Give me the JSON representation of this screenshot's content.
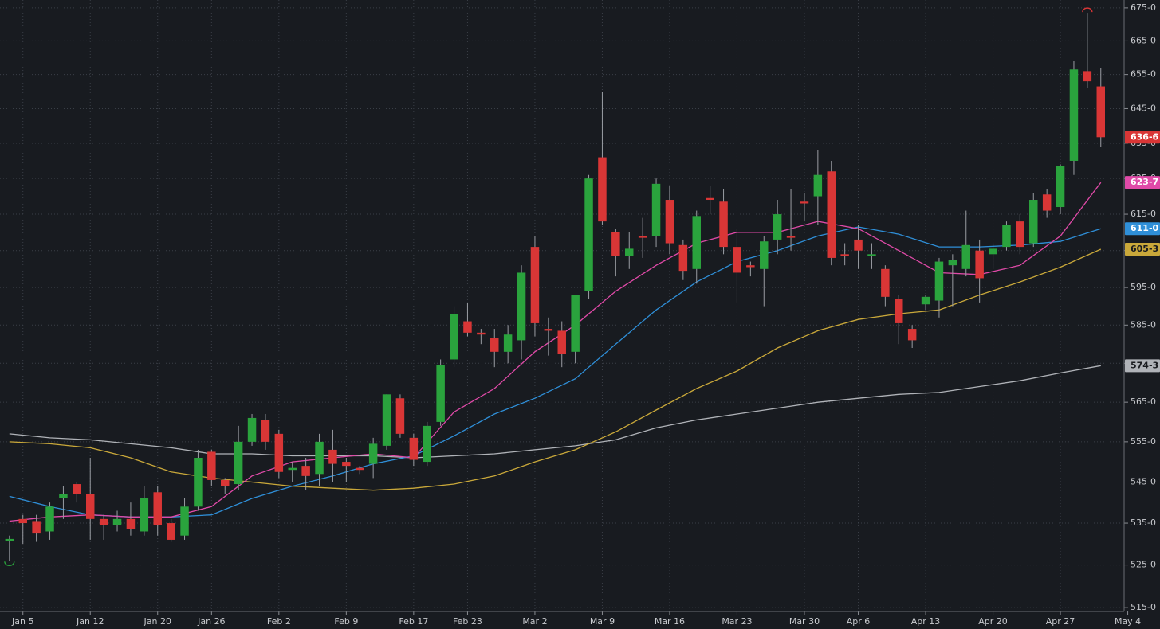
{
  "chart_data": {
    "type": "candlestick",
    "log_scale": true,
    "grid": true,
    "xlim": [
      -0.7,
      82.73
    ],
    "ylim": [
      514.1,
      677.4
    ],
    "up_color": "#2aa33d",
    "down_color": "#d93636",
    "xticks": [
      {
        "value": 1,
        "label": "Jan 5"
      },
      {
        "value": 6,
        "label": "Jan 12"
      },
      {
        "value": 11,
        "label": "Jan 20"
      },
      {
        "value": 15,
        "label": "Jan 26"
      },
      {
        "value": 20,
        "label": "Feb 2"
      },
      {
        "value": 25,
        "label": "Feb 9"
      },
      {
        "value": 30,
        "label": "Feb 17"
      },
      {
        "value": 34,
        "label": "Feb 23"
      },
      {
        "value": 39,
        "label": "Mar 2"
      },
      {
        "value": 44,
        "label": "Mar 9"
      },
      {
        "value": 49,
        "label": "Mar 16"
      },
      {
        "value": 54,
        "label": "Mar 23"
      },
      {
        "value": 59,
        "label": "Mar 30"
      },
      {
        "value": 63,
        "label": "Apr 6"
      },
      {
        "value": 68,
        "label": "Apr 13"
      },
      {
        "value": 73,
        "label": "Apr 20"
      },
      {
        "value": 78,
        "label": "Apr 27"
      },
      {
        "value": 83,
        "label": "May 4"
      }
    ],
    "yticks": [
      {
        "value": 675,
        "label": "675-0"
      },
      {
        "value": 665,
        "label": "665-0"
      },
      {
        "value": 655,
        "label": "655-0"
      },
      {
        "value": 645,
        "label": "645-0"
      },
      {
        "value": 635,
        "label": "635-0"
      },
      {
        "value": 625,
        "label": "625-0"
      },
      {
        "value": 615,
        "label": "615-0"
      },
      {
        "value": 605,
        "label": "605-0"
      },
      {
        "value": 595,
        "label": "595-0"
      },
      {
        "value": 585,
        "label": "585-0"
      },
      {
        "value": 575,
        "label": "575-0"
      },
      {
        "value": 565,
        "label": "565-0"
      },
      {
        "value": 555,
        "label": "555-0"
      },
      {
        "value": 545,
        "label": "545-0"
      },
      {
        "value": 535,
        "label": "535-0"
      },
      {
        "value": 525,
        "label": "525-0"
      },
      {
        "value": 515,
        "label": "515-0"
      }
    ],
    "candles": {
      "open": [
        530.8,
        536,
        535.5,
        533,
        541,
        544.5,
        542,
        536,
        534.5,
        536,
        533,
        542.5,
        535,
        532,
        539,
        552.5,
        545.5,
        544.5,
        555,
        560.5,
        557,
        548,
        549,
        547,
        553,
        550,
        548.5,
        549.5,
        554,
        566,
        556,
        550,
        560,
        576,
        586,
        583,
        581.5,
        578,
        581,
        606,
        584,
        583.5,
        578,
        594,
        631,
        610,
        603.5,
        609,
        609,
        619,
        606.5,
        600,
        619.5,
        618.5,
        606,
        601,
        600,
        608,
        609,
        618.5,
        620,
        627,
        604,
        608,
        603.5,
        600,
        592,
        584,
        590.5,
        591.5,
        601,
        600,
        605,
        604,
        606,
        613,
        607,
        620.5,
        617,
        630,
        656,
        651.5
      ],
      "high": [
        532,
        537,
        537,
        540,
        544,
        545,
        551,
        537,
        538,
        540,
        544,
        544,
        536,
        541,
        553,
        553,
        546,
        559,
        562,
        562,
        558,
        550,
        551,
        557,
        558,
        551,
        549,
        556,
        567,
        567,
        557,
        560,
        576,
        590,
        591,
        584,
        584,
        585,
        601,
        609,
        587,
        586,
        593,
        626,
        650,
        611,
        610,
        614,
        625,
        623,
        608,
        616,
        623,
        622,
        611,
        602,
        609,
        619,
        622,
        621,
        633,
        630,
        607,
        612,
        607,
        601,
        593,
        585,
        593,
        603,
        604,
        616,
        608,
        607,
        613,
        615,
        621,
        622,
        629,
        659,
        673.5,
        657
      ],
      "low": [
        526,
        530,
        530.5,
        531,
        536,
        540,
        531,
        531,
        533,
        532,
        532,
        532,
        530.5,
        531,
        538,
        544,
        542,
        543,
        554,
        553,
        546,
        545,
        543,
        544,
        545,
        545,
        547,
        546,
        553,
        556,
        549,
        549,
        559,
        574,
        582,
        580,
        574,
        575,
        576,
        582,
        577,
        574,
        575,
        592,
        612,
        598,
        600,
        603,
        606,
        604,
        597,
        596,
        615,
        604,
        591,
        598,
        590,
        604,
        605,
        613,
        612,
        601,
        601,
        600,
        600,
        590,
        580,
        579,
        589,
        587,
        590,
        598,
        591,
        600,
        605,
        604,
        606,
        614,
        615,
        626,
        651,
        634
      ],
      "close": [
        531.2,
        535,
        532.5,
        539,
        542,
        542,
        536,
        534.5,
        536,
        533.5,
        541,
        534.5,
        531,
        539,
        551,
        545.5,
        544,
        555,
        561,
        555,
        547.5,
        548.5,
        546.5,
        555,
        549.5,
        549,
        548,
        554.5,
        567,
        557,
        550.5,
        559,
        574.5,
        588,
        583,
        582.5,
        578,
        582.5,
        599,
        585.5,
        583.5,
        577.5,
        593,
        625,
        613,
        603.5,
        605.5,
        608.5,
        623.5,
        607,
        599.5,
        614.5,
        619,
        606,
        599,
        600.5,
        607.5,
        615,
        608.5,
        618,
        626,
        603,
        603.5,
        605,
        604,
        592.5,
        585.5,
        581,
        592.5,
        602,
        602.5,
        606.5,
        597.5,
        605.5,
        612,
        606,
        619,
        616,
        628.5,
        656.5,
        653,
        636.75
      ],
      "last_label": "636-6"
    },
    "lines": [
      {
        "color": "#b0b3b8",
        "text_color": "#1a1c20",
        "last_label": "574-3",
        "x": [
          0,
          3,
          6,
          9,
          12,
          15,
          18,
          21,
          24,
          27,
          30,
          33,
          36,
          39,
          42,
          45,
          48,
          51,
          54,
          57,
          60,
          63,
          66,
          69,
          72,
          75,
          78,
          81
        ],
        "values": [
          557,
          556,
          555.5,
          554.5,
          553.5,
          552,
          552,
          551.5,
          551.5,
          551.5,
          551,
          551.5,
          552,
          553,
          554,
          555.5,
          558.5,
          560.5,
          562,
          563.5,
          565,
          566,
          567,
          567.5,
          569,
          570.5,
          572.5,
          574.375
        ]
      },
      {
        "color": "#c9a83a",
        "text_color": "#1a1c20",
        "last_label": "605-3",
        "x": [
          0,
          3,
          6,
          9,
          12,
          15,
          18,
          21,
          24,
          27,
          30,
          33,
          36,
          39,
          42,
          45,
          48,
          51,
          54,
          57,
          60,
          63,
          66,
          69,
          72,
          75,
          78,
          81
        ],
        "values": [
          555,
          554.5,
          553.5,
          551,
          547.5,
          546,
          545,
          544,
          543.5,
          543,
          543.5,
          544.5,
          546.5,
          550,
          553,
          557.5,
          563,
          568.5,
          573,
          579,
          583.5,
          586.5,
          588,
          589,
          593,
          596.5,
          600.5,
          605.375
        ]
      },
      {
        "color": "#2f8fd8",
        "text_color": "#ffffff",
        "last_label": "611-0",
        "x": [
          0,
          3,
          6,
          9,
          12,
          15,
          18,
          21,
          24,
          27,
          30,
          33,
          36,
          39,
          42,
          45,
          48,
          51,
          54,
          57,
          60,
          63,
          66,
          69,
          72,
          75,
          78,
          81
        ],
        "values": [
          541.5,
          539,
          537,
          536.5,
          536.5,
          537,
          541,
          544,
          546.5,
          549.5,
          551.5,
          556.5,
          562,
          566,
          571,
          580,
          589,
          596.5,
          602,
          605,
          609,
          611.5,
          609.5,
          606,
          606,
          606.5,
          607.5,
          611
        ]
      },
      {
        "color": "#e04aa8",
        "text_color": "#ffffff",
        "last_label": "623-7",
        "x": [
          0,
          3,
          6,
          9,
          12,
          15,
          18,
          21,
          24,
          27,
          30,
          33,
          36,
          39,
          42,
          45,
          48,
          51,
          54,
          57,
          60,
          63,
          66,
          69,
          72,
          75,
          78,
          81
        ],
        "values": [
          535.5,
          536.5,
          537,
          536.5,
          536.5,
          539,
          546.5,
          550,
          551,
          552,
          551,
          562.5,
          568.5,
          578,
          585,
          594,
          601,
          607,
          610,
          610,
          613,
          611,
          605,
          599,
          598.5,
          601,
          609,
          623.875
        ]
      }
    ]
  }
}
